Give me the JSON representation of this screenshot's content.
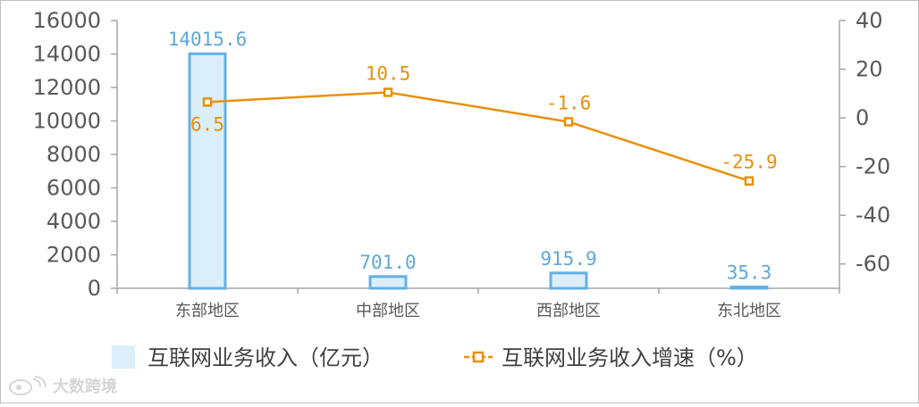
{
  "chart_data": {
    "type": "bar",
    "categories": [
      "东部地区",
      "中部地区",
      "西部地区",
      "东北地区"
    ],
    "series": [
      {
        "name": "互联网业务收入（亿元）",
        "type": "bar",
        "axis": "left",
        "values": [
          14015.6,
          701.0,
          915.9,
          35.3
        ],
        "labels": [
          "14015.6",
          "701.0",
          "915.9",
          "35.3"
        ]
      },
      {
        "name": "互联网业务收入增速（%）",
        "type": "line",
        "axis": "right",
        "values": [
          6.5,
          10.5,
          -1.6,
          -25.9
        ],
        "labels": [
          "6.5",
          "10.5",
          "-1.6",
          "-25.9"
        ]
      }
    ],
    "y_left": {
      "min": 0,
      "max": 16000,
      "ticks": [
        0,
        2000,
        4000,
        6000,
        8000,
        10000,
        12000,
        14000,
        16000
      ]
    },
    "y_right": {
      "min": -70,
      "max": 40,
      "ticks": [
        40,
        20,
        0,
        -20,
        -40,
        -60
      ]
    },
    "legend": "bottom",
    "grid": false,
    "colors": {
      "bar_fill": "#dbeefb",
      "bar_stroke": "#63b0e6",
      "line": "#e8900a",
      "bar_label": "#5fa8d8",
      "line_label": "#e8900a",
      "axis": "#a6a6a6"
    }
  },
  "watermark": {
    "text": "大数跨境",
    "icon": "weibo-logo-icon"
  }
}
